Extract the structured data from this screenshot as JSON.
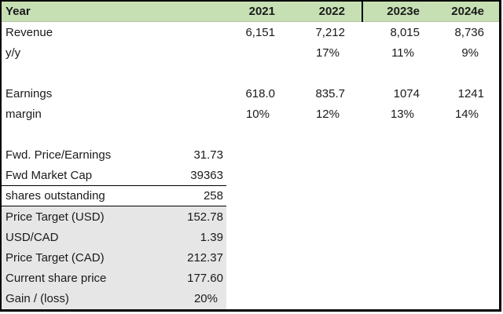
{
  "colors": {
    "header_bg": "#c6e0b4",
    "shaded_bg": "#e7e6e6",
    "border": "#000000",
    "header_gridline": "#b6c4a4",
    "text": "#1a1a1a"
  },
  "sheet": {
    "header": {
      "label": "Year",
      "years": [
        "2021",
        "2022",
        "2023e",
        "2024e"
      ]
    },
    "forecast": [
      {
        "label": "Revenue",
        "values": [
          "6,151",
          "7,212",
          "8,015",
          "8,736"
        ]
      },
      {
        "label": "y/y",
        "values": [
          "",
          "17%",
          "11%",
          "9%"
        ]
      },
      {
        "label": "Earnings",
        "values": [
          "618.0",
          "835.7",
          "1074",
          "1241"
        ]
      },
      {
        "label": "margin",
        "values": [
          "10%",
          "12%",
          "13%",
          "14%"
        ]
      }
    ],
    "valuation": [
      {
        "label": "Fwd. Price/Earnings",
        "value": "31.73"
      },
      {
        "label": "Fwd Market Cap",
        "value": "39363"
      },
      {
        "label": "shares outstanding",
        "value": "258"
      },
      {
        "label": "Price Target (USD)",
        "value": "152.78"
      },
      {
        "label": "USD/CAD",
        "value": "1.39"
      },
      {
        "label": "Price Target (CAD)",
        "value": "212.37"
      },
      {
        "label": "Current share price",
        "value": "177.60"
      },
      {
        "label": "Gain / (loss)",
        "value": "20%"
      }
    ]
  },
  "chart_data": {
    "type": "table",
    "title": "Financial forecast and price target model",
    "columns": [
      "Year",
      "2021",
      "2022",
      "2023e",
      "2024e"
    ],
    "rows": [
      [
        "Revenue",
        6151,
        7212,
        8015,
        8736
      ],
      [
        "y/y",
        null,
        "17%",
        "11%",
        "9%"
      ],
      [
        "Earnings",
        618.0,
        835.7,
        1074,
        1241
      ],
      [
        "margin",
        "10%",
        "12%",
        "13%",
        "14%"
      ]
    ],
    "valuation_rows": [
      [
        "Fwd. Price/Earnings",
        31.73
      ],
      [
        "Fwd Market Cap",
        39363
      ],
      [
        "shares outstanding",
        258
      ],
      [
        "Price Target (USD)",
        152.78
      ],
      [
        "USD/CAD",
        1.39
      ],
      [
        "Price Target (CAD)",
        212.37
      ],
      [
        "Current share price",
        177.6
      ],
      [
        "Gain / (loss)",
        "20%"
      ]
    ],
    "layout_hints": {
      "header_fill": "#c6e0b4",
      "valuation_fill": "#e7e6e6",
      "divider_between": [
        "2022",
        "2023e"
      ]
    }
  }
}
